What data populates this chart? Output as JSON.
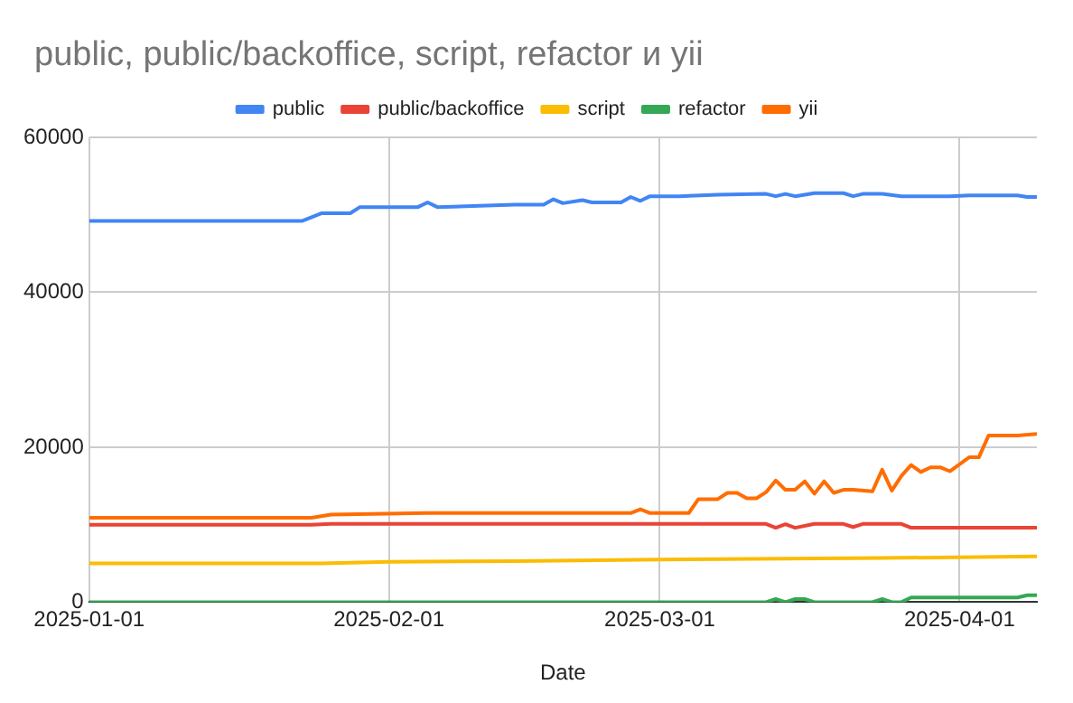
{
  "chart_data": {
    "type": "line",
    "title": "public, public/backoffice, script, refactor и yii",
    "xlabel": "Date",
    "xlim": [
      "2025-01-01",
      "2025-04-09"
    ],
    "xticks": [
      "2025-01-01",
      "2025-02-01",
      "2025-03-01",
      "2025-04-01"
    ],
    "ylim": [
      0,
      60000
    ],
    "yticks": [
      0,
      20000,
      40000,
      60000
    ],
    "grid": true,
    "legend": "top",
    "marker": "none",
    "line_style": "solid",
    "series": [
      {
        "name": "public",
        "color": "#4285f4",
        "x": [
          "2025-01-01",
          "2025-01-23",
          "2025-01-25",
          "2025-01-28",
          "2025-01-29",
          "2025-02-04",
          "2025-02-05",
          "2025-02-06",
          "2025-02-14",
          "2025-02-17",
          "2025-02-18",
          "2025-02-19",
          "2025-02-21",
          "2025-02-22",
          "2025-02-25",
          "2025-02-26",
          "2025-02-27",
          "2025-02-28",
          "2025-03-03",
          "2025-03-07",
          "2025-03-12",
          "2025-03-13",
          "2025-03-14",
          "2025-03-15",
          "2025-03-17",
          "2025-03-20",
          "2025-03-21",
          "2025-03-22",
          "2025-03-24",
          "2025-03-26",
          "2025-03-31",
          "2025-04-02",
          "2025-04-07",
          "2025-04-08",
          "2025-04-09"
        ],
        "values": [
          49200,
          49200,
          50200,
          50200,
          51000,
          51000,
          51600,
          51000,
          51300,
          51300,
          52000,
          51500,
          51900,
          51600,
          51600,
          52300,
          51800,
          52400,
          52400,
          52600,
          52700,
          52400,
          52700,
          52400,
          52800,
          52800,
          52400,
          52700,
          52700,
          52400,
          52400,
          52500,
          52500,
          52300,
          52300
        ]
      },
      {
        "name": "public/backoffice",
        "color": "#ea4335",
        "x": [
          "2025-01-01",
          "2025-01-24",
          "2025-01-26",
          "2025-03-12",
          "2025-03-13",
          "2025-03-14",
          "2025-03-15",
          "2025-03-17",
          "2025-03-20",
          "2025-03-21",
          "2025-03-22",
          "2025-03-26",
          "2025-03-27",
          "2025-04-09"
        ],
        "values": [
          10000,
          10000,
          10100,
          10100,
          9600,
          10050,
          9600,
          10100,
          10100,
          9700,
          10100,
          10100,
          9600,
          9600
        ]
      },
      {
        "name": "script",
        "color": "#fbbc04",
        "x": [
          "2025-01-01",
          "2025-01-25",
          "2025-02-01",
          "2025-02-14",
          "2025-03-01",
          "2025-03-24",
          "2025-04-09"
        ],
        "values": [
          5000,
          5000,
          5200,
          5300,
          5500,
          5700,
          5900
        ]
      },
      {
        "name": "refactor",
        "color": "#34a853",
        "x": [
          "2025-01-01",
          "2025-03-12",
          "2025-03-13",
          "2025-03-14",
          "2025-03-15",
          "2025-03-16",
          "2025-03-17",
          "2025-03-23",
          "2025-03-24",
          "2025-03-25",
          "2025-03-26",
          "2025-03-27",
          "2025-04-07",
          "2025-04-08",
          "2025-04-09"
        ],
        "values": [
          0,
          0,
          400,
          0,
          400,
          400,
          0,
          0,
          400,
          0,
          0,
          600,
          600,
          900,
          900
        ]
      },
      {
        "name": "yii",
        "color": "#ff6d01",
        "x": [
          "2025-01-01",
          "2025-01-24",
          "2025-01-26",
          "2025-02-05",
          "2025-02-26",
          "2025-02-27",
          "2025-02-28",
          "2025-03-04",
          "2025-03-05",
          "2025-03-07",
          "2025-03-08",
          "2025-03-09",
          "2025-03-10",
          "2025-03-11",
          "2025-03-12",
          "2025-03-13",
          "2025-03-14",
          "2025-03-15",
          "2025-03-16",
          "2025-03-17",
          "2025-03-18",
          "2025-03-19",
          "2025-03-20",
          "2025-03-21",
          "2025-03-23",
          "2025-03-24",
          "2025-03-25",
          "2025-03-26",
          "2025-03-27",
          "2025-03-28",
          "2025-03-29",
          "2025-03-30",
          "2025-03-31",
          "2025-04-01",
          "2025-04-02",
          "2025-04-03",
          "2025-04-04",
          "2025-04-07",
          "2025-04-09"
        ],
        "values": [
          10900,
          10900,
          11300,
          11500,
          11500,
          12000,
          11500,
          11500,
          13300,
          13300,
          14100,
          14100,
          13400,
          13400,
          14200,
          15700,
          14500,
          14500,
          15600,
          14000,
          15600,
          14100,
          14500,
          14500,
          14300,
          17100,
          14400,
          16300,
          17700,
          16800,
          17400,
          17400,
          16900,
          17800,
          18700,
          18700,
          21500,
          21500,
          21700
        ]
      }
    ]
  }
}
